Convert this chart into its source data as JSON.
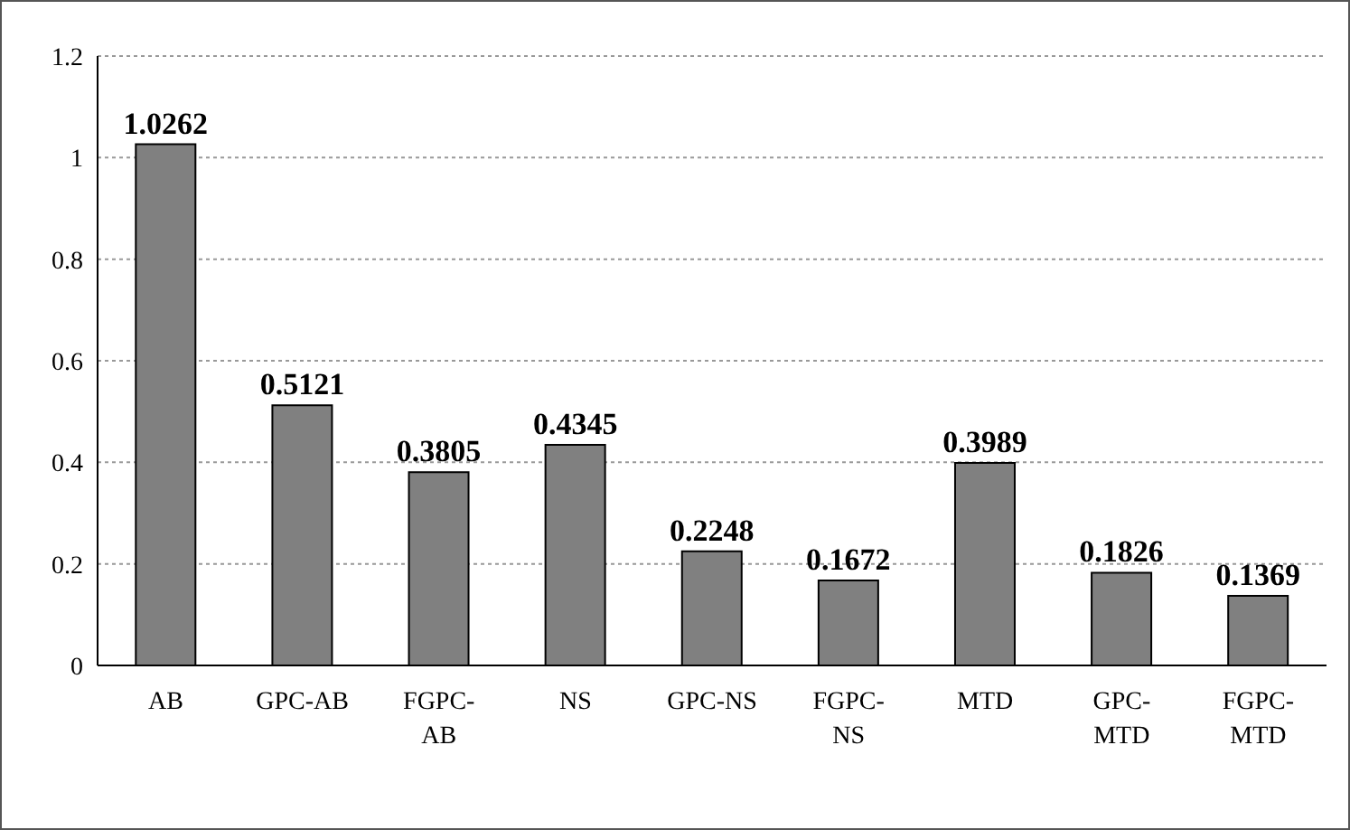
{
  "chart_data": {
    "type": "bar",
    "categories": [
      "AB",
      "GPC-AB",
      "FGPC-AB",
      "NS",
      "GPC-NS",
      "FGPC-NS",
      "MTD",
      "GPC-MTD",
      "FGPC-MTD"
    ],
    "values": [
      1.0262,
      0.5121,
      0.3805,
      0.4345,
      0.2248,
      0.1672,
      0.3989,
      0.1826,
      0.1369
    ],
    "color": "#808080",
    "ylim": [
      0,
      1.2
    ],
    "yticks": [
      0,
      0.2,
      0.4,
      0.6,
      0.8,
      1,
      1.2
    ],
    "grid": "y",
    "data_labels": true
  }
}
